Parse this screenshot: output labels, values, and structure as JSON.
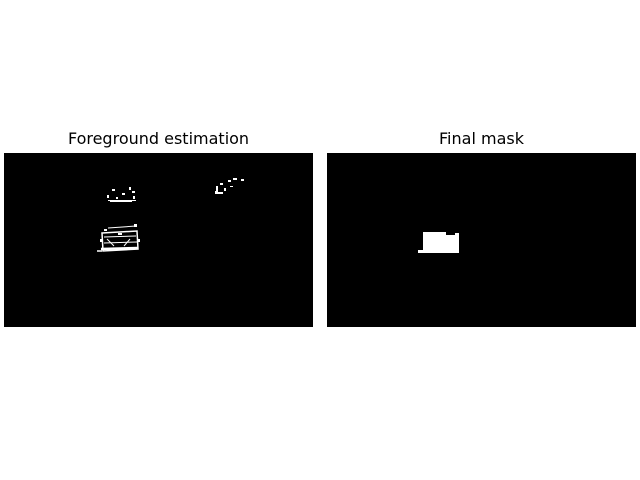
{
  "panels": [
    {
      "title": "Foreground estimation"
    },
    {
      "title": "Final mask"
    }
  ],
  "colors": {
    "background": "#ffffff",
    "image_background": "#000000",
    "foreground": "#ffffff"
  }
}
